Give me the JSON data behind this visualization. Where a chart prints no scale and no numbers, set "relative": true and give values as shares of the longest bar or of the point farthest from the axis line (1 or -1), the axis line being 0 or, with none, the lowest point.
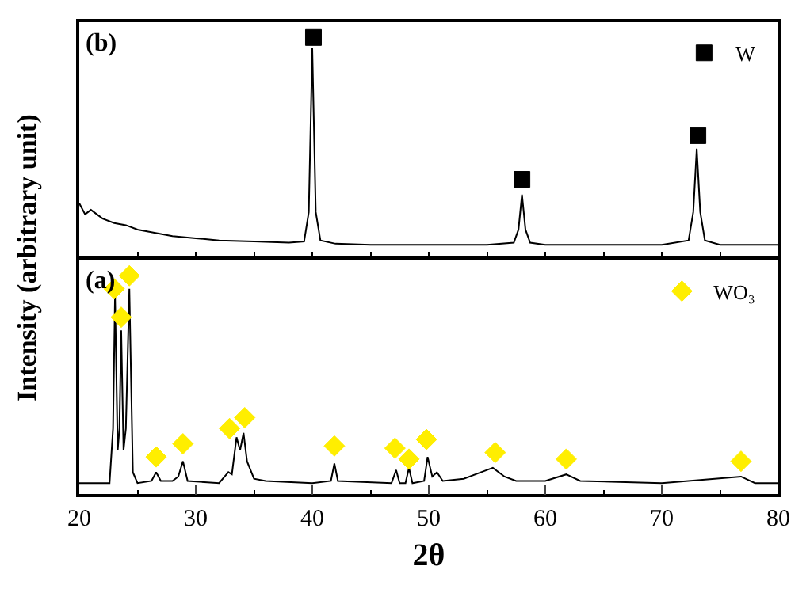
{
  "chart_data": [
    {
      "type": "line",
      "relative": true,
      "ylabel": "Intensity (arbitrary unit)",
      "annotations": [
        "(b)"
      ],
      "legend": "top right",
      "tick_labels": false,
      "xlim": [
        20,
        80
      ],
      "xticks": [
        {
          "value": 20,
          "label": null
        },
        {
          "value": 25,
          "label": null
        },
        {
          "value": 30,
          "label": null
        },
        {
          "value": 35,
          "label": null
        },
        {
          "value": 40,
          "label": null
        },
        {
          "value": 45,
          "label": null
        },
        {
          "value": 50,
          "label": null
        },
        {
          "value": 55,
          "label": null
        },
        {
          "value": 60,
          "label": null
        },
        {
          "value": 65,
          "label": null
        },
        {
          "value": 70,
          "label": null
        },
        {
          "value": 75,
          "label": null
        },
        {
          "value": 80,
          "label": null
        }
      ],
      "series": [
        {
          "color": "#000000",
          "marker": "none",
          "x": [
            20,
            20.5,
            21,
            22,
            23,
            24,
            25,
            26,
            27,
            28,
            30,
            32,
            35,
            38,
            39.3,
            39.7,
            40.0,
            40.3,
            40.7,
            42,
            45,
            50,
            55,
            57.3,
            57.7,
            58.0,
            58.3,
            58.7,
            60,
            65,
            70,
            72.3,
            72.7,
            73.0,
            73.3,
            73.7,
            75,
            80
          ],
          "values": [
            0.24,
            0.19,
            0.21,
            0.17,
            0.15,
            0.14,
            0.12,
            0.11,
            0.1,
            0.09,
            0.08,
            0.07,
            0.065,
            0.06,
            0.065,
            0.2,
            0.95,
            0.2,
            0.07,
            0.055,
            0.05,
            0.05,
            0.05,
            0.06,
            0.12,
            0.28,
            0.12,
            0.06,
            0.05,
            0.05,
            0.05,
            0.07,
            0.2,
            0.49,
            0.2,
            0.07,
            0.05,
            0.05
          ]
        },
        {
          "type": "scatter",
          "name": "W",
          "color": "#000000",
          "marker": "square",
          "x": [
            40.1,
            58.0,
            73.1
          ],
          "values": [
            1.0,
            0.35,
            0.55
          ]
        }
      ]
    },
    {
      "type": "line",
      "relative": true,
      "xlabel": "2θ",
      "annotations": [
        "(a)"
      ],
      "legend": "top right",
      "tick_labels": "x",
      "xlim": [
        20,
        80
      ],
      "xticks": [
        20,
        {
          "value": 25,
          "label": null
        },
        30,
        {
          "value": 35,
          "label": null
        },
        40,
        {
          "value": 45,
          "label": null
        },
        50,
        {
          "value": 55,
          "label": null
        },
        60,
        {
          "value": 65,
          "label": null
        },
        70,
        {
          "value": 75,
          "label": null
        },
        80
      ],
      "series": [
        {
          "color": "#000000",
          "marker": "none",
          "x": [
            20,
            22.6,
            22.9,
            23.07,
            23.3,
            23.45,
            23.6,
            23.8,
            24.0,
            24.3,
            24.6,
            25,
            26.2,
            26.6,
            27,
            28.0,
            28.5,
            28.9,
            29.3,
            32,
            32.8,
            33.1,
            33.5,
            33.8,
            34.1,
            34.4,
            35,
            36,
            40,
            41.6,
            41.9,
            42.2,
            46.8,
            47.2,
            47.5,
            48.0,
            48.3,
            48.6,
            49.6,
            49.9,
            50.3,
            50.7,
            51.2,
            53,
            54.5,
            55.5,
            56.5,
            57.5,
            60,
            61.8,
            63,
            70,
            76.8,
            78,
            80
          ],
          "values": [
            0.05,
            0.05,
            0.3,
            0.91,
            0.2,
            0.3,
            0.75,
            0.2,
            0.3,
            0.94,
            0.1,
            0.05,
            0.06,
            0.1,
            0.06,
            0.06,
            0.08,
            0.15,
            0.06,
            0.05,
            0.1,
            0.09,
            0.26,
            0.2,
            0.28,
            0.15,
            0.07,
            0.06,
            0.05,
            0.06,
            0.14,
            0.06,
            0.05,
            0.11,
            0.05,
            0.05,
            0.12,
            0.05,
            0.06,
            0.17,
            0.08,
            0.1,
            0.06,
            0.07,
            0.1,
            0.12,
            0.08,
            0.06,
            0.06,
            0.09,
            0.06,
            0.05,
            0.08,
            0.05,
            0.05
          ]
        },
        {
          "type": "scatter",
          "name": "WO₃",
          "color": "#ffee00",
          "marker": "diamond",
          "x": [
            23.0,
            23.6,
            24.3,
            26.6,
            28.9,
            32.9,
            34.2,
            41.9,
            47.1,
            48.3,
            49.8,
            55.7,
            61.8,
            76.8
          ],
          "values": [
            0.94,
            0.81,
            1.0,
            0.17,
            0.23,
            0.3,
            0.35,
            0.22,
            0.21,
            0.16,
            0.25,
            0.19,
            0.16,
            0.15
          ]
        }
      ]
    }
  ]
}
